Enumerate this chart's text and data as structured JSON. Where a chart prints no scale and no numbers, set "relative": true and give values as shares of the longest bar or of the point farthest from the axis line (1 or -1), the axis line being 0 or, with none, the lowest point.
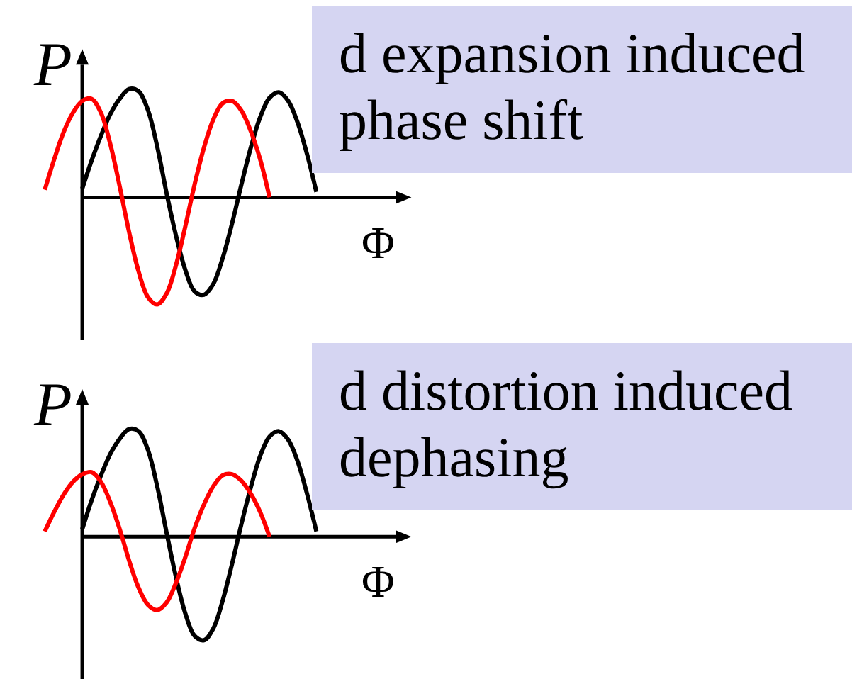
{
  "chart_data": [
    {
      "type": "line",
      "title": "d expansion induced phase shift",
      "xlabel": "Φ",
      "ylabel": "P",
      "relative": true,
      "categories": [
        null,
        null,
        null,
        null,
        null,
        null,
        null,
        null,
        null,
        null,
        null,
        null,
        null,
        null,
        null,
        null,
        null,
        null,
        null,
        null,
        null,
        null,
        null,
        null,
        null,
        null,
        null,
        null,
        null,
        null
      ],
      "series": [
        {
          "color": "#000000",
          "values": [
            null,
            null,
            null,
            null,
            0.08,
            0.34,
            0.57,
            0.77,
            0.91,
            1.0,
            0.98,
            0.81,
            0.47,
            0.04,
            -0.35,
            -0.67,
            -0.87,
            -0.9,
            -0.8,
            -0.56,
            -0.24,
            0.12,
            0.46,
            0.74,
            0.92,
            0.97,
            0.89,
            0.69,
            0.4,
            0.05
          ]
        },
        {
          "color": "#ff0000",
          "values": [
            0.07,
            0.35,
            0.6,
            0.78,
            0.89,
            0.91,
            0.78,
            0.49,
            0.1,
            -0.32,
            -0.68,
            -0.92,
            -0.99,
            -0.89,
            -0.63,
            -0.27,
            0.12,
            0.46,
            0.72,
            0.87,
            0.89,
            0.8,
            0.61,
            0.35,
            0.0,
            null,
            null,
            null,
            null,
            null
          ]
        }
      ]
    },
    {
      "type": "line",
      "title": "d distortion induced dephasing",
      "xlabel": "Φ",
      "ylabel": "P",
      "relative": true,
      "categories": [
        null,
        null,
        null,
        null,
        null,
        null,
        null,
        null,
        null,
        null,
        null,
        null,
        null,
        null,
        null,
        null,
        null,
        null,
        null,
        null,
        null,
        null,
        null,
        null,
        null,
        null,
        null,
        null,
        null,
        null
      ],
      "series": [
        {
          "color": "#000000",
          "values": [
            null,
            null,
            null,
            null,
            0.07,
            0.34,
            0.57,
            0.77,
            0.91,
            1.0,
            0.98,
            0.81,
            0.47,
            0.04,
            -0.37,
            -0.71,
            -0.92,
            -0.96,
            -0.85,
            -0.59,
            -0.25,
            0.12,
            0.46,
            0.75,
            0.93,
            0.98,
            0.9,
            0.7,
            0.4,
            0.05
          ]
        },
        {
          "color": "#ff0000",
          "values": [
            0.05,
            0.23,
            0.39,
            0.51,
            0.58,
            0.6,
            0.51,
            0.32,
            0.07,
            -0.22,
            -0.47,
            -0.63,
            -0.68,
            -0.61,
            -0.43,
            -0.19,
            0.08,
            0.3,
            0.47,
            0.57,
            0.58,
            0.52,
            0.4,
            0.23,
            0.0,
            null,
            null,
            null,
            null,
            null
          ]
        }
      ]
    }
  ]
}
